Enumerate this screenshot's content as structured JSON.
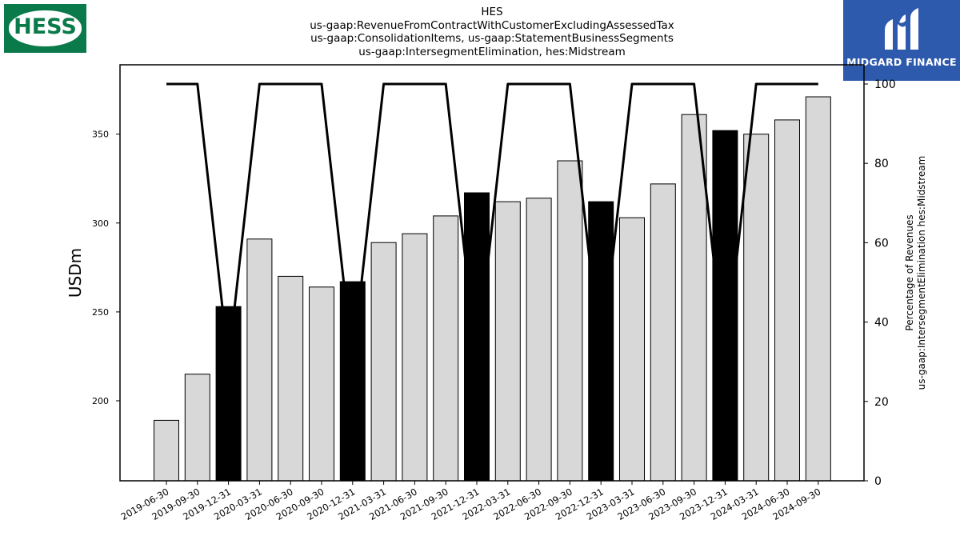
{
  "logos": {
    "left_text": "HESS",
    "right_text": "MIDGARD FINANCE",
    "colors": {
      "hess_green": "#0b7a4b",
      "midgard_blue": "#2e5aad"
    }
  },
  "titles": [
    "HES",
    "us-gaap:RevenueFromContractWithCustomerExcludingAssessedTax",
    "us-gaap:ConsolidationItems, us-gaap:StatementBusinessSegments",
    "us-gaap:IntersegmentElimination, hes:Midstream"
  ],
  "chart_data": {
    "type": "bar",
    "categories": [
      "2019-06-30",
      "2019-09-30",
      "2019-12-31",
      "2020-03-31",
      "2020-06-30",
      "2020-09-30",
      "2020-12-31",
      "2021-03-31",
      "2021-06-30",
      "2021-09-30",
      "2021-12-31",
      "2022-03-31",
      "2022-06-30",
      "2022-09-30",
      "2022-12-31",
      "2023-03-31",
      "2023-06-30",
      "2023-09-30",
      "2023-12-31",
      "2024-03-31",
      "2024-06-30",
      "2024-09-30"
    ],
    "values": [
      189,
      215,
      253,
      291,
      270,
      264,
      267,
      289,
      294,
      304,
      317,
      312,
      314,
      335,
      312,
      303,
      322,
      361,
      352,
      350,
      358,
      371
    ],
    "highlight": [
      false,
      false,
      true,
      false,
      false,
      false,
      true,
      false,
      false,
      false,
      true,
      false,
      false,
      false,
      true,
      false,
      false,
      false,
      true,
      false,
      false,
      false
    ],
    "ylabel": "USDm",
    "ylim": [
      155,
      389
    ],
    "yticks": [
      200,
      250,
      300,
      350
    ],
    "line": {
      "values": [
        100,
        100,
        30,
        100,
        100,
        100,
        30,
        100,
        100,
        100,
        30,
        100,
        100,
        100,
        30,
        100,
        100,
        100,
        30,
        100,
        100,
        100
      ],
      "ylabel_lines": [
        "Percentage of Revenues",
        "us-gaap:IntersegmentElimination hes:Midstream"
      ],
      "ylim": [
        0,
        100
      ],
      "yticks": [
        0,
        20,
        40,
        60,
        80,
        100
      ]
    },
    "colors": {
      "bar": "#d8d8d8",
      "bar_highlight": "#000000",
      "line": "#000000"
    },
    "grid": false
  }
}
